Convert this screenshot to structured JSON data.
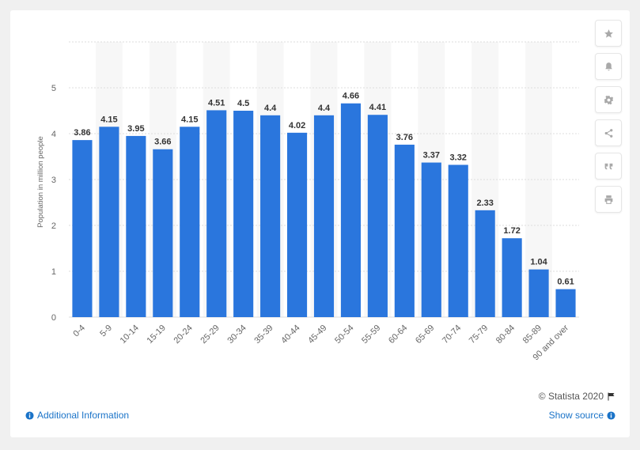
{
  "chart_data": {
    "type": "bar",
    "categories": [
      "0-4",
      "5-9",
      "10-14",
      "15-19",
      "20-24",
      "25-29",
      "30-34",
      "35-39",
      "40-44",
      "45-49",
      "50-54",
      "55-59",
      "60-64",
      "65-69",
      "70-74",
      "75-79",
      "80-84",
      "85-89",
      "90 and over"
    ],
    "values": [
      3.86,
      4.15,
      3.95,
      3.66,
      4.15,
      4.51,
      4.5,
      4.4,
      4.02,
      4.4,
      4.66,
      4.41,
      3.76,
      3.37,
      3.32,
      2.33,
      1.72,
      1.04,
      0.61
    ],
    "value_labels": [
      "3.86",
      "4.15",
      "3.95",
      "3.66",
      "4.15",
      "4.51",
      "4.5",
      "4.4",
      "4.02",
      "4.4",
      "4.66",
      "4.41",
      "3.76",
      "3.37",
      "3.32",
      "2.33",
      "1.72",
      "1.04",
      "0.61"
    ],
    "ylabel": "Population in million people",
    "xlabel": "",
    "yticks": [
      "0",
      "1",
      "2",
      "3",
      "4",
      "5"
    ],
    "ylim": [
      0,
      6
    ],
    "grid": true,
    "legend": "none",
    "colors": {
      "bar": "#2a76dd",
      "stripe": "#f7f7f7",
      "grid": "#dcdcdc",
      "label": "#333333",
      "tick": "#666666"
    }
  },
  "sidebar": {
    "buttons": [
      {
        "icon": "star-icon",
        "action": "favorite"
      },
      {
        "icon": "bell-icon",
        "action": "notify"
      },
      {
        "icon": "gear-icon",
        "action": "settings"
      },
      {
        "icon": "share-icon",
        "action": "share"
      },
      {
        "icon": "quote-icon",
        "action": "cite"
      },
      {
        "icon": "print-icon",
        "action": "print"
      }
    ]
  },
  "footer": {
    "additional_info": "Additional Information",
    "credit": "© Statista 2020",
    "show_source": "Show source"
  }
}
